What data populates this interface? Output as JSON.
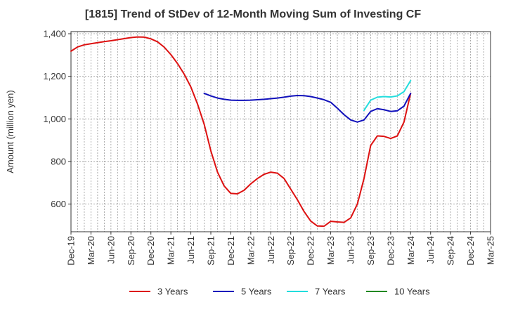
{
  "chart_data": {
    "type": "line",
    "title": "[1815]  Trend of StDev of 12-Month Moving Sum of Investing CF",
    "xlabel": "",
    "ylabel": "Amount (million yen)",
    "ylim": [
      470,
      1410
    ],
    "yticks": [
      600,
      800,
      1000,
      1200,
      1400
    ],
    "ytick_labels": [
      "600",
      "800",
      "1,000",
      "1,200",
      "1,400"
    ],
    "x_range": [
      "Dec-19",
      "Mar-25"
    ],
    "xtick_labels": [
      "Dec-19",
      "Mar-20",
      "Jun-20",
      "Sep-20",
      "Dec-20",
      "Mar-21",
      "Jun-21",
      "Sep-21",
      "Dec-21",
      "Mar-22",
      "Jun-22",
      "Sep-22",
      "Dec-22",
      "Mar-23",
      "Jun-23",
      "Sep-23",
      "Dec-23",
      "Mar-24",
      "Jun-24",
      "Sep-24",
      "Dec-24",
      "Mar-25"
    ],
    "grid": true,
    "legend_position": "bottom",
    "series": [
      {
        "name": "3 Years",
        "color": "#dd1111",
        "x": [
          "Dec-19",
          "Jan-20",
          "Feb-20",
          "Mar-20",
          "Apr-20",
          "May-20",
          "Jun-20",
          "Jul-20",
          "Aug-20",
          "Sep-20",
          "Oct-20",
          "Nov-20",
          "Dec-20",
          "Jan-21",
          "Feb-21",
          "Mar-21",
          "Apr-21",
          "May-21",
          "Jun-21",
          "Jul-21",
          "Aug-21",
          "Sep-21",
          "Oct-21",
          "Nov-21",
          "Dec-21",
          "Jan-22",
          "Feb-22",
          "Mar-22",
          "Apr-22",
          "May-22",
          "Jun-22",
          "Jul-22",
          "Aug-22",
          "Sep-22",
          "Oct-22",
          "Nov-22",
          "Dec-22",
          "Jan-23",
          "Feb-23",
          "Mar-23",
          "Apr-23",
          "May-23",
          "Jun-23",
          "Jul-23",
          "Aug-23",
          "Sep-23",
          "Oct-23",
          "Nov-23",
          "Dec-23",
          "Jan-24",
          "Feb-24",
          "Mar-24"
        ],
        "values": [
          1318,
          1338,
          1348,
          1353,
          1358,
          1363,
          1367,
          1372,
          1377,
          1382,
          1385,
          1384,
          1376,
          1362,
          1337,
          1302,
          1260,
          1210,
          1150,
          1070,
          975,
          850,
          750,
          685,
          650,
          648,
          665,
          695,
          720,
          740,
          750,
          745,
          720,
          670,
          620,
          565,
          520,
          497,
          496,
          519,
          516,
          514,
          535,
          600,
          720,
          875,
          920,
          918,
          908,
          920,
          985,
          1120
        ]
      },
      {
        "name": "5 Years",
        "color": "#1111bb",
        "x": [
          "Aug-21",
          "Sep-21",
          "Oct-21",
          "Nov-21",
          "Dec-21",
          "Jan-22",
          "Feb-22",
          "Mar-22",
          "Apr-22",
          "May-22",
          "Jun-22",
          "Jul-22",
          "Aug-22",
          "Sep-22",
          "Oct-22",
          "Nov-22",
          "Dec-22",
          "Jan-23",
          "Feb-23",
          "Mar-23",
          "Apr-23",
          "May-23",
          "Jun-23",
          "Jul-23",
          "Aug-23",
          "Sep-23",
          "Oct-23",
          "Nov-23",
          "Dec-23",
          "Jan-24",
          "Feb-24",
          "Mar-24"
        ],
        "values": [
          1120,
          1108,
          1098,
          1092,
          1088,
          1087,
          1087,
          1088,
          1090,
          1092,
          1095,
          1098,
          1102,
          1107,
          1110,
          1109,
          1105,
          1098,
          1090,
          1078,
          1050,
          1020,
          995,
          985,
          995,
          1035,
          1048,
          1043,
          1035,
          1038,
          1060,
          1120
        ]
      },
      {
        "name": "7 Years",
        "color": "#22dddd",
        "x": [
          "Aug-23",
          "Sep-23",
          "Oct-23",
          "Nov-23",
          "Dec-23",
          "Jan-24",
          "Feb-24",
          "Mar-24"
        ],
        "values": [
          1040,
          1088,
          1102,
          1105,
          1103,
          1108,
          1128,
          1180
        ]
      },
      {
        "name": "10 Years",
        "color": "#228822",
        "x": [],
        "values": []
      }
    ]
  }
}
